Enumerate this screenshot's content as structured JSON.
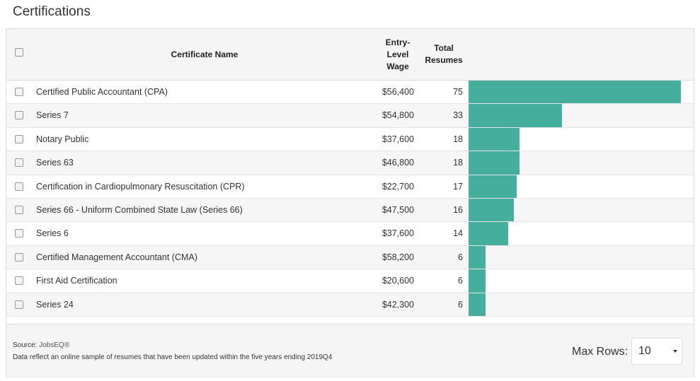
{
  "title": "Certifications",
  "table": {
    "columns": {
      "name": "Certificate Name",
      "wage": "Entry-Level Wage",
      "wage_lines": [
        "Entry-",
        "Level",
        "Wage"
      ],
      "total_lines": [
        "Total",
        "Resumes"
      ]
    },
    "max_total": 75,
    "rows": [
      {
        "name": "Certified Public Accountant (CPA)",
        "wage": "$56,400",
        "total": "75",
        "value": 75
      },
      {
        "name": "Series 7",
        "wage": "$54,800",
        "total": "33",
        "value": 33
      },
      {
        "name": "Notary Public",
        "wage": "$37,600",
        "total": "18",
        "value": 18
      },
      {
        "name": "Series 63",
        "wage": "$46,800",
        "total": "18",
        "value": 18
      },
      {
        "name": "Certification in Cardiopulmonary Resuscitation (CPR)",
        "wage": "$22,700",
        "total": "17",
        "value": 17
      },
      {
        "name": "Series 66 - Uniform Combined State Law (Series 66)",
        "wage": "$47,500",
        "total": "16",
        "value": 16
      },
      {
        "name": "Series 6",
        "wage": "$37,600",
        "total": "14",
        "value": 14
      },
      {
        "name": "Certified Management Accountant (CMA)",
        "wage": "$58,200",
        "total": "6",
        "value": 6
      },
      {
        "name": "First Aid Certification",
        "wage": "$20,600",
        "total": "6",
        "value": 6
      },
      {
        "name": "Series 24",
        "wage": "$42,300",
        "total": "6",
        "value": 6
      }
    ]
  },
  "footer": {
    "source_label": "Source:",
    "source_link": "JobsEQ®",
    "note": "Data reflect an online sample of resumes that have been updated within the five years ending 2019Q4",
    "max_rows_label": "Max Rows:",
    "max_rows_value": "10"
  },
  "colors": {
    "bar": "#45ae9c"
  }
}
